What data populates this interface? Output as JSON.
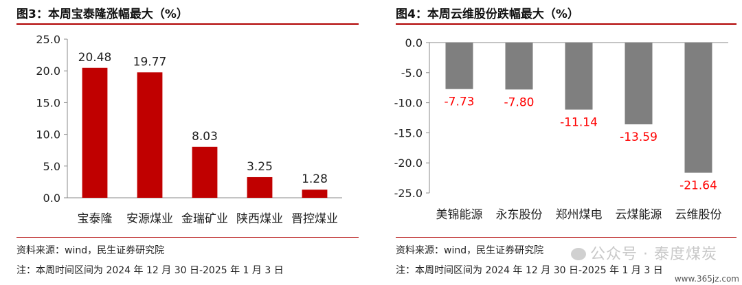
{
  "left": {
    "title": "图3：本周宝泰隆涨幅最大（%）",
    "source": "资料来源：wind，民生证券研究院",
    "period": "注：本周时间区间为 2024 年 12 月 30 日-2025 年 1 月 3 日"
  },
  "right": {
    "title": "图4：本周云维股份跌幅最大（%）",
    "source": "资料来源：wind，民生证券研究院",
    "period": "注：本周时间区间为 2024 年 12 月 30 日-2025 年 1 月 3 日"
  },
  "watermark": "公众号 · 泰度煤炭",
  "site": "www.365jz.com",
  "chart_data": [
    {
      "type": "bar",
      "categories": [
        "宝泰隆",
        "安源煤业",
        "金瑞矿业",
        "陕西煤业",
        "晋控煤业"
      ],
      "values": [
        20.48,
        19.77,
        8.03,
        3.25,
        1.28
      ],
      "value_labels": [
        "20.48",
        "19.77",
        "8.03",
        "3.25",
        "1.28"
      ],
      "ylim": [
        0,
        25
      ],
      "yticks": [
        0,
        5,
        10,
        15,
        20,
        25
      ],
      "ytick_labels": [
        "0.0",
        "5.0",
        "10.0",
        "15.0",
        "20.0",
        "25.0"
      ],
      "bar_color": "#c00000",
      "label_color": "#222222",
      "grid": false
    },
    {
      "type": "bar",
      "categories": [
        "美锦能源",
        "永东股份",
        "郑州煤电",
        "云煤能源",
        "云维股份"
      ],
      "values": [
        -7.73,
        -7.8,
        -11.14,
        -13.59,
        -21.64
      ],
      "value_labels": [
        "-7.73",
        "-7.80",
        "-11.14",
        "-13.59",
        "-21.64"
      ],
      "ylim": [
        -25,
        0
      ],
      "yticks": [
        0,
        -5,
        -10,
        -15,
        -20,
        -25
      ],
      "ytick_labels": [
        "0.0",
        "-5.0",
        "-10.0",
        "-15.0",
        "-20.0",
        "-25.0"
      ],
      "bar_color": "#7f7f7f",
      "label_color": "#ff0000",
      "grid": false
    }
  ]
}
